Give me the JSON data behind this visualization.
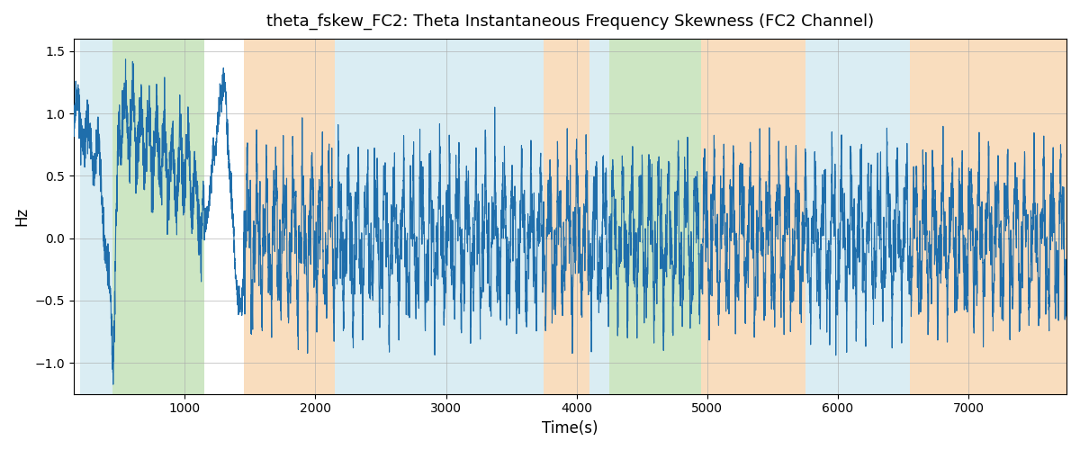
{
  "title": "theta_fskew_FC2: Theta Instantaneous Frequency Skewness (FC2 Channel)",
  "xlabel": "Time(s)",
  "ylabel": "Hz",
  "xlim": [
    150,
    7750
  ],
  "ylim": [
    -1.25,
    1.6
  ],
  "yticks": [
    -1.0,
    -0.5,
    0.0,
    0.5,
    1.0,
    1.5
  ],
  "line_color": "#1f6eab",
  "line_width": 0.8,
  "bg_color": "#ffffff",
  "grid_color": "#aaaaaa",
  "title_fontsize": 13,
  "label_fontsize": 12,
  "regions": [
    {
      "start": 200,
      "end": 450,
      "color": "#add8e6",
      "alpha": 0.45
    },
    {
      "start": 450,
      "end": 1150,
      "color": "#90c97a",
      "alpha": 0.45
    },
    {
      "start": 1450,
      "end": 2150,
      "color": "#f5c18a",
      "alpha": 0.55
    },
    {
      "start": 2150,
      "end": 3750,
      "color": "#add8e6",
      "alpha": 0.45
    },
    {
      "start": 3750,
      "end": 4100,
      "color": "#f5c18a",
      "alpha": 0.55
    },
    {
      "start": 4100,
      "end": 4250,
      "color": "#add8e6",
      "alpha": 0.45
    },
    {
      "start": 4250,
      "end": 4950,
      "color": "#90c97a",
      "alpha": 0.45
    },
    {
      "start": 4950,
      "end": 5750,
      "color": "#f5c18a",
      "alpha": 0.55
    },
    {
      "start": 5750,
      "end": 6550,
      "color": "#add8e6",
      "alpha": 0.45
    },
    {
      "start": 6550,
      "end": 7750,
      "color": "#f5c18a",
      "alpha": 0.55
    }
  ],
  "seed": 12345,
  "t_start": 150,
  "t_end": 7750,
  "dt": 1.0
}
